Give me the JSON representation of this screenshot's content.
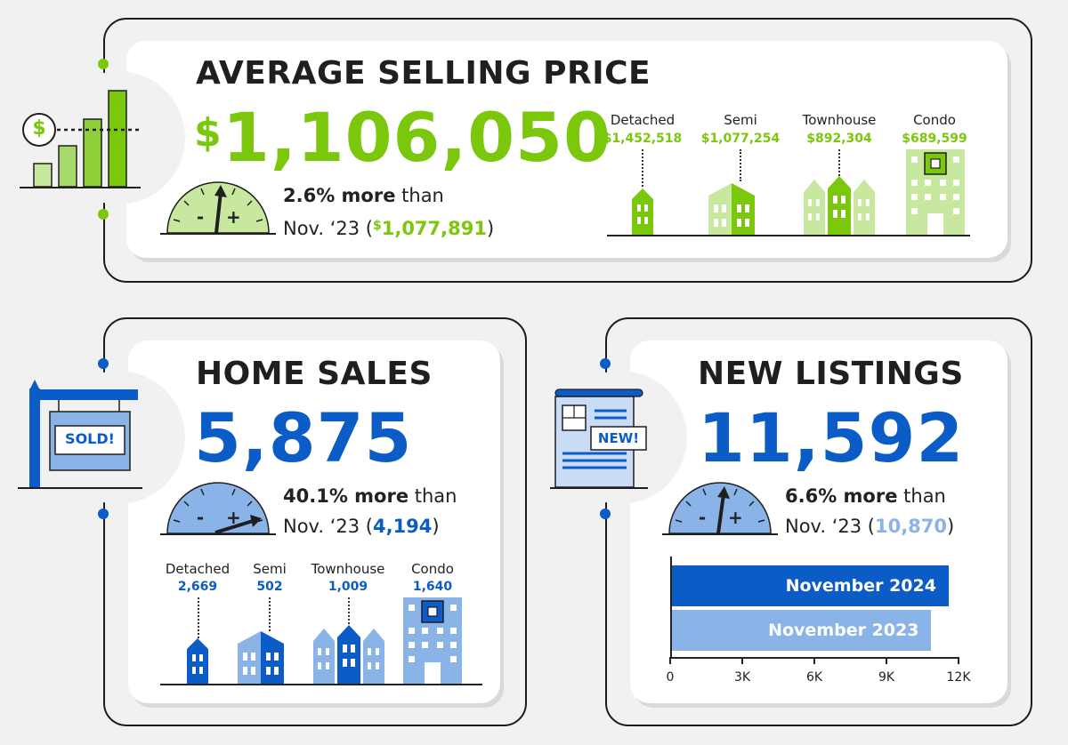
{
  "colors": {
    "green": "#7ac70c",
    "green_light": "#c8e8a0",
    "blue": "#0b5cc6",
    "blue_light": "#8ab4e8",
    "dark": "#1f1f1f"
  },
  "average_selling_price": {
    "title": "AVERAGE SELLING PRICE",
    "currency": "$",
    "value": "1,106,050",
    "change_pct": "2.6% more",
    "change_word": " than",
    "prior_label": "Nov. ‘23 (",
    "prior_currency": "$",
    "prior_value": "1,077,891",
    "prior_close": ")",
    "types": [
      {
        "label": "Detached",
        "value": "$1,452,518"
      },
      {
        "label": "Semi",
        "value": "$1,077,254"
      },
      {
        "label": "Townhouse",
        "value": "$892,304"
      },
      {
        "label": "Condo",
        "value": "$689,599"
      }
    ],
    "icon_currency": "$"
  },
  "home_sales": {
    "title": "HOME SALES",
    "value": "5,875",
    "change_pct": "40.1% more",
    "change_word": " than",
    "prior_label": "Nov. ‘23 (",
    "prior_value": "4,194",
    "prior_close": ")",
    "sign_text": "SOLD!",
    "types": [
      {
        "label": "Detached",
        "value": "2,669"
      },
      {
        "label": "Semi",
        "value": "502"
      },
      {
        "label": "Townhouse",
        "value": "1,009"
      },
      {
        "label": "Condo",
        "value": "1,640"
      }
    ]
  },
  "new_listings": {
    "title": "NEW LISTINGS",
    "value": "11,592",
    "change_pct": "6.6% more",
    "change_word": " than",
    "prior_label": "Nov. ‘23 (",
    "prior_value": "10,870",
    "prior_close": ")",
    "badge": "NEW!",
    "gauge_minus": "-",
    "gauge_plus": "+"
  },
  "gauge_labels": {
    "minus": "-",
    "plus": "+"
  },
  "chart_data": {
    "type": "bar",
    "orientation": "horizontal",
    "categories": [
      "November 2024",
      "November 2023"
    ],
    "values": [
      11592,
      10870
    ],
    "xlim": [
      0,
      12000
    ],
    "xticks": [
      "0",
      "3K",
      "6K",
      "9K",
      "12K"
    ],
    "tick_values": [
      0,
      3000,
      6000,
      9000,
      12000
    ]
  }
}
